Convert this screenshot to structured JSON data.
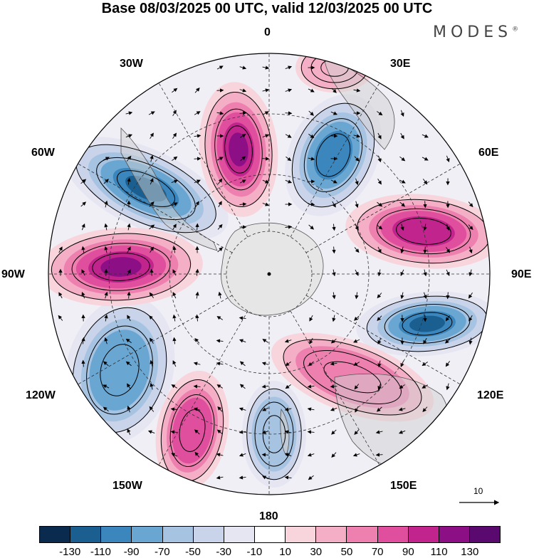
{
  "title": "Base 08/03/2025 00 UTC, valid 12/03/2025 00 UTC",
  "brand": {
    "name": "MODES",
    "mark": "®"
  },
  "map": {
    "projection": "south polar stereographic",
    "longitude_labels": {
      "top": "0",
      "top_right": "30E",
      "right_upper": "60E",
      "right": "90E",
      "right_lower": "120E",
      "bottom_right": "150E",
      "bottom": "180",
      "bottom_left": "150W",
      "left_lower": "120W",
      "left": "90W",
      "left_upper": "60W",
      "top_left": "30W"
    },
    "vector_scale_label": "10",
    "colors": {
      "land": "#dcdcdc",
      "coast": "#555555",
      "grid": "#333333"
    }
  },
  "colorbar": {
    "colors": [
      "#0b2b4e",
      "#1b5f91",
      "#3a86bd",
      "#6aa6d2",
      "#a7c3e2",
      "#c9d3ea",
      "#e6e6f3",
      "#ffffff",
      "#f8d4dc",
      "#f4aec6",
      "#ee80b0",
      "#e04f9e",
      "#c2248d",
      "#8c0f86",
      "#5a0a6e"
    ],
    "tick_labels": [
      "-130",
      "-110",
      "-90",
      "-70",
      "-50",
      "-30",
      "-10",
      "10",
      "30",
      "50",
      "70",
      "90",
      "110",
      "130"
    ]
  }
}
